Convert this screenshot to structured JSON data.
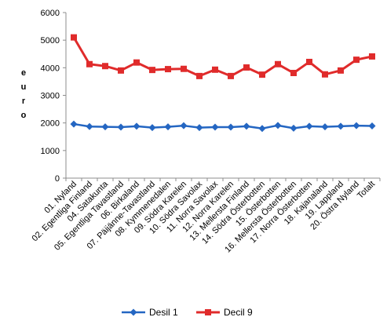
{
  "chart_data": {
    "type": "line",
    "title": "",
    "xlabel": "",
    "ylabel": "euro",
    "ylim": [
      0,
      6000
    ],
    "yticks": [
      0,
      1000,
      2000,
      3000,
      4000,
      5000,
      6000
    ],
    "grid": false,
    "legend_position": "bottom",
    "categories": [
      "01. Nyland",
      "02. Egentliga Finland",
      "04. Satakunta",
      "05. Egentliga Tavastland",
      "06. Birkaland",
      "07. Päijänne-Tavastland",
      "08. Kymmenedalen",
      "09. Södra Karelen",
      "10. Södra Savolax",
      "11. Norra Savolax",
      "12. Norra Karelen",
      "13. Mellersta Finland",
      "14. Södra Österbotten",
      "15. Österbotten",
      "16. Mellersta Österbotten",
      "17. Norra Österbotten",
      "18. Kajanaland",
      "19. Lappland",
      "20. Östra Nyland",
      "Totalt"
    ],
    "series": [
      {
        "name": "Desil 1",
        "color": "#2466c2",
        "marker": "diamond",
        "values": [
          1960,
          1870,
          1860,
          1850,
          1880,
          1830,
          1860,
          1900,
          1830,
          1850,
          1850,
          1880,
          1800,
          1910,
          1810,
          1880,
          1860,
          1880,
          1900,
          1890
        ]
      },
      {
        "name": "Decil 9",
        "color": "#e02b2b",
        "marker": "square",
        "values": [
          5100,
          4130,
          4060,
          3900,
          4190,
          3920,
          3950,
          3960,
          3700,
          3930,
          3700,
          4010,
          3750,
          4130,
          3810,
          4210,
          3760,
          3900,
          4290,
          4410
        ]
      }
    ]
  }
}
